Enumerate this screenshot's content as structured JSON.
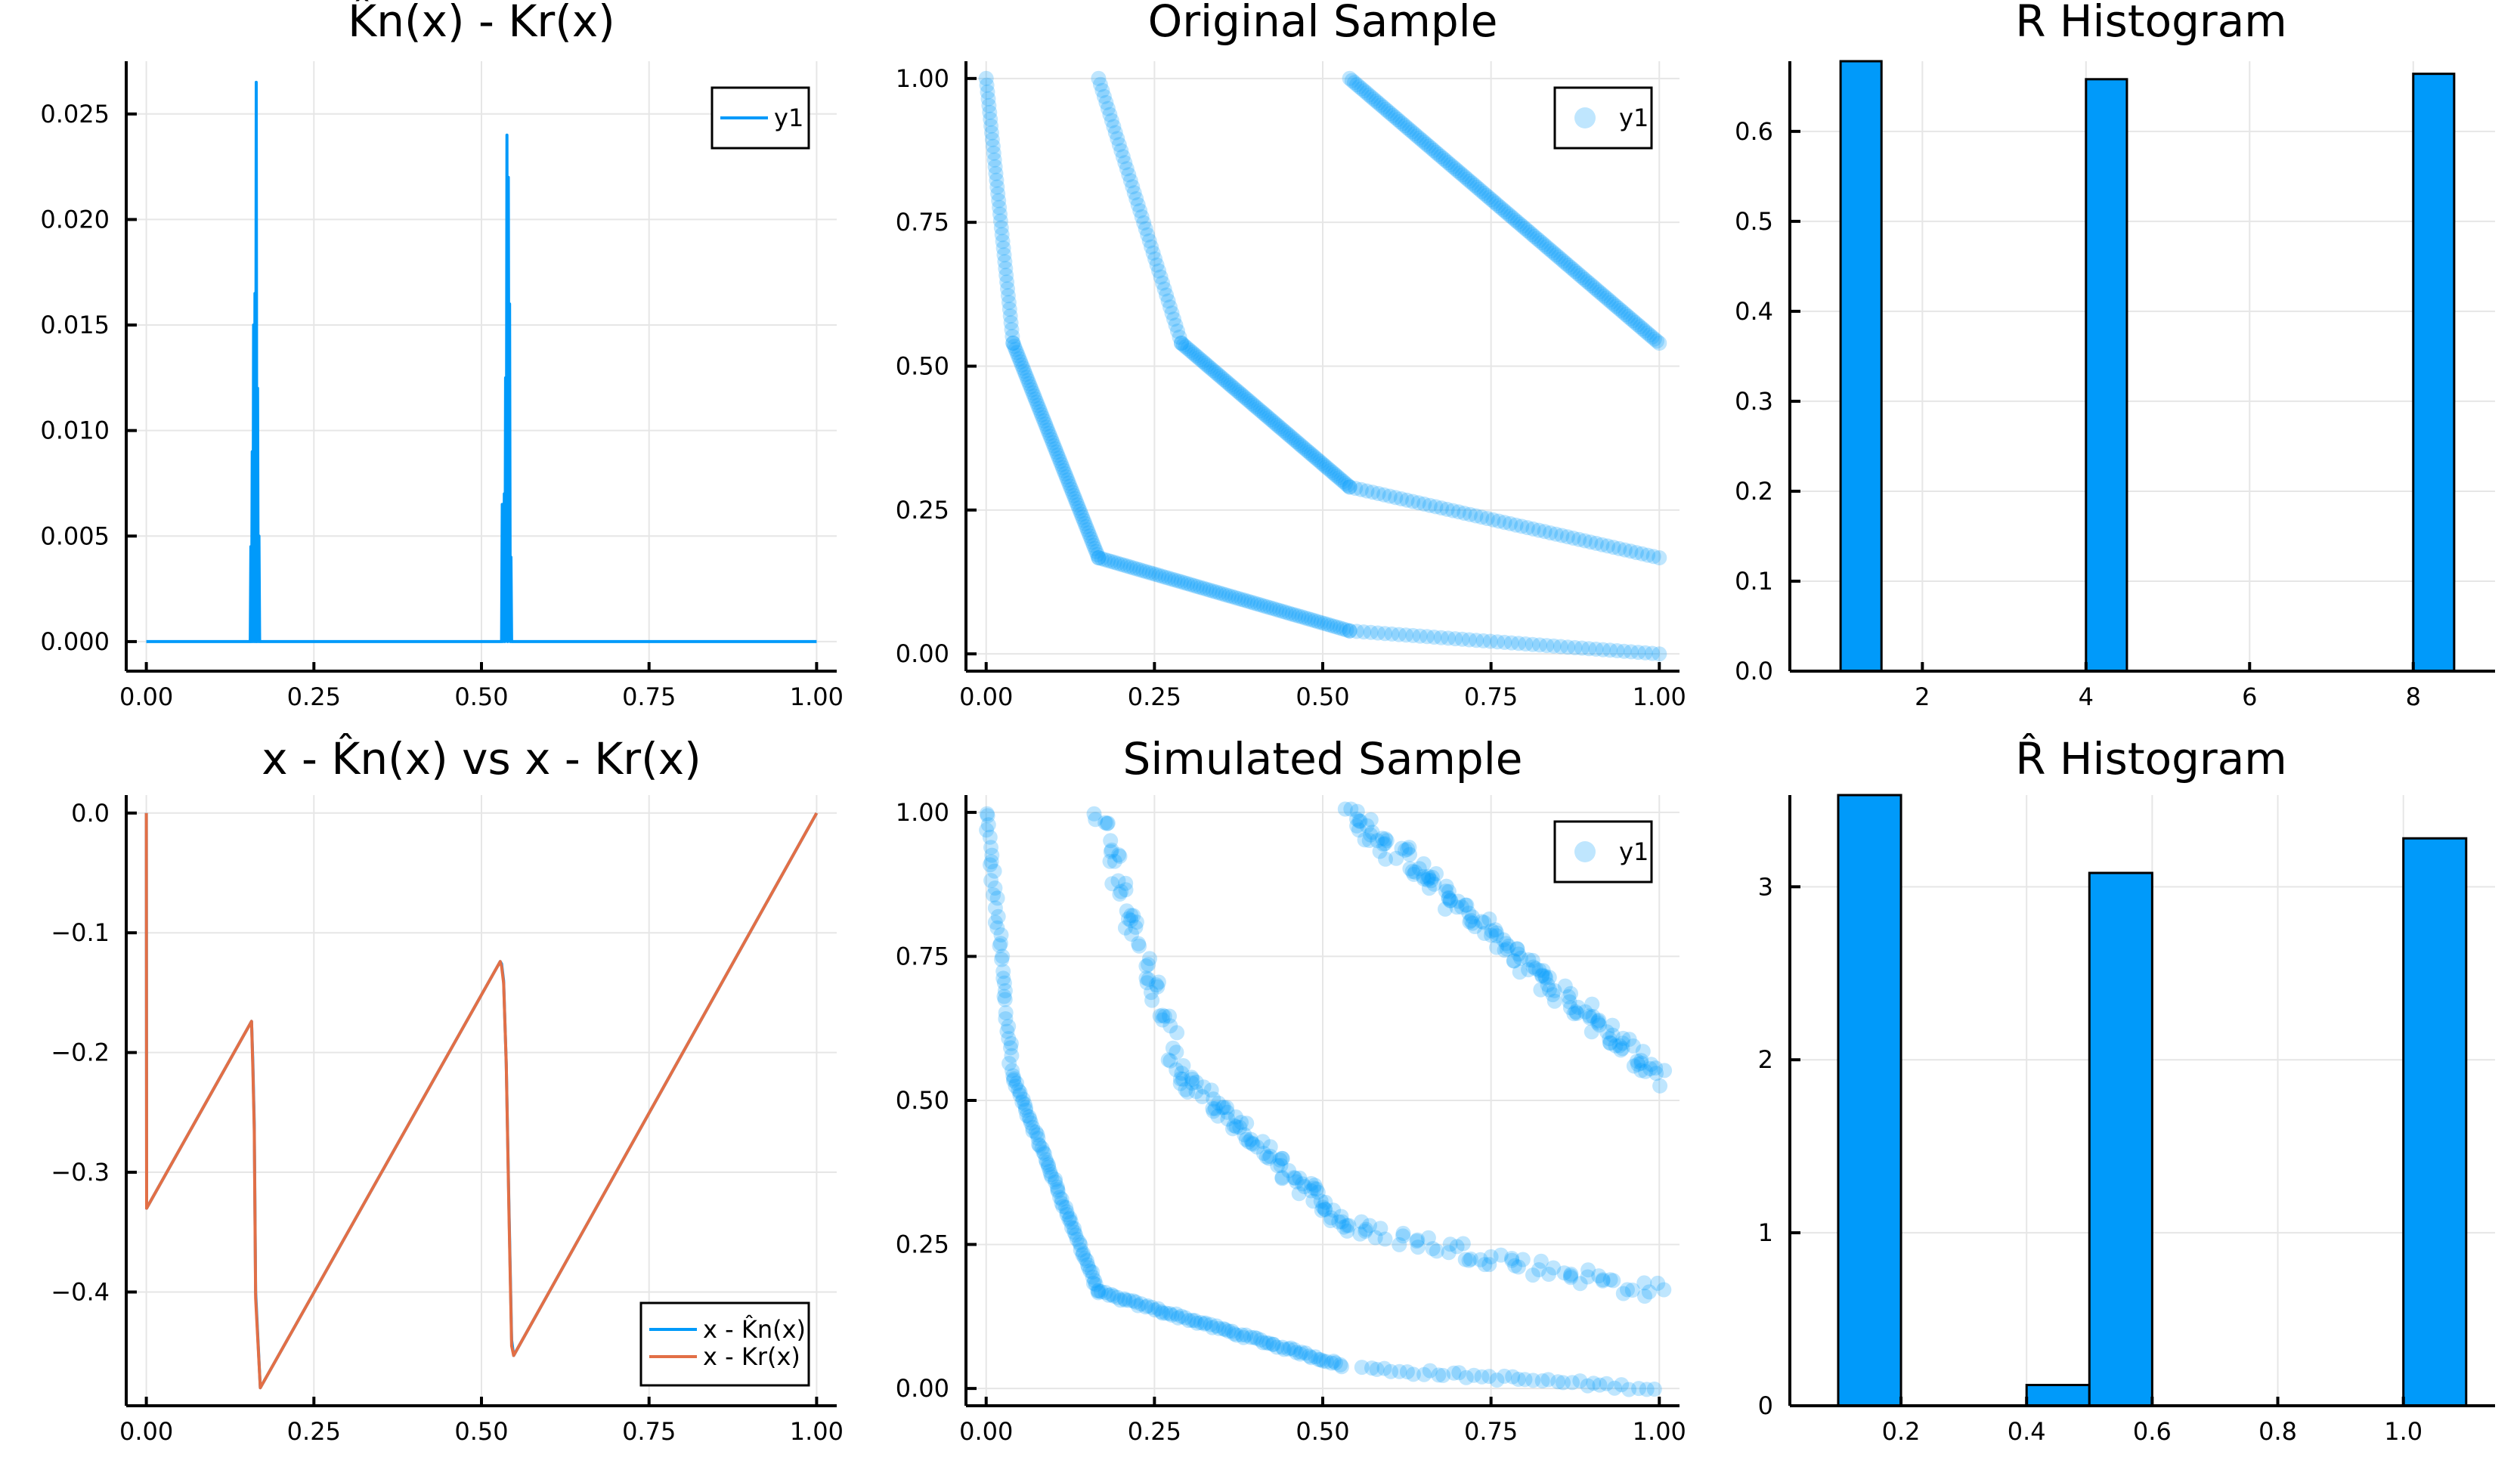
{
  "figure": {
    "colors": {
      "series1": "#009AFA",
      "series2": "#E26F46",
      "bar_edge": "#000000",
      "grid": "#E6E6E6"
    }
  },
  "chart_data": [
    {
      "id": "diff",
      "type": "line",
      "title": "K̂ₙ(x) - Kᵣ(x)",
      "title_display": "K̂n(x) - Kr(x)",
      "xlabel": "",
      "ylabel": "",
      "xlim": [
        -0.03,
        1.03
      ],
      "ylim": [
        -0.0014,
        0.0275
      ],
      "xticks": [
        0.0,
        0.25,
        0.5,
        0.75,
        1.0
      ],
      "xtick_labels": [
        "0.00",
        "0.25",
        "0.50",
        "0.75",
        "1.00"
      ],
      "yticks": [
        0.0,
        0.005,
        0.01,
        0.015,
        0.02,
        0.025
      ],
      "ytick_labels": [
        "0.000",
        "0.005",
        "0.010",
        "0.015",
        "0.020",
        "0.025"
      ],
      "grid": true,
      "legend": {
        "position": "top-right",
        "entries": [
          "y1"
        ]
      },
      "series": [
        {
          "name": "y1",
          "x": [
            0.0,
            0.155,
            0.156,
            0.157,
            0.158,
            0.159,
            0.16,
            0.161,
            0.162,
            0.163,
            0.164,
            0.165,
            0.166,
            0.167,
            0.168,
            0.169,
            0.17,
            0.171,
            0.53,
            0.531,
            0.532,
            0.533,
            0.534,
            0.535,
            0.536,
            0.537,
            0.538,
            0.539,
            0.54,
            0.541,
            0.542,
            0.543,
            0.544,
            0.545,
            0.546,
            0.547,
            1.0
          ],
          "y": [
            0.0,
            0.0,
            0.0045,
            0.0,
            0.009,
            0.0,
            0.015,
            0.0,
            0.0165,
            0.0,
            0.0265,
            0.0,
            0.012,
            0.0,
            0.005,
            0.0,
            0.0,
            0.0,
            0.0,
            0.0065,
            0.0,
            0.0005,
            0.007,
            0.0,
            0.0125,
            0.0025,
            0.024,
            0.0,
            0.022,
            0.007,
            0.016,
            0.0,
            0.004,
            0.0,
            0.0,
            0.0,
            0.0
          ]
        }
      ]
    },
    {
      "id": "original",
      "type": "scatter",
      "title": "Original Sample",
      "xlabel": "",
      "ylabel": "",
      "xlim": [
        -0.03,
        1.03
      ],
      "ylim": [
        -0.03,
        1.03
      ],
      "xticks": [
        0.0,
        0.25,
        0.5,
        0.75,
        1.0
      ],
      "xtick_labels": [
        "0.00",
        "0.25",
        "0.50",
        "0.75",
        "1.00"
      ],
      "yticks": [
        0.0,
        0.25,
        0.5,
        0.75,
        1.0
      ],
      "ytick_labels": [
        "0.00",
        "0.25",
        "0.50",
        "0.75",
        "1.00"
      ],
      "grid": true,
      "marker_alpha": 0.25,
      "legend": {
        "position": "top-right",
        "entries": [
          "y1"
        ]
      },
      "series": [
        {
          "name": "y1",
          "segments": [
            {
              "from": [
                0.0,
                1.0
              ],
              "to": [
                0.04,
                0.54
              ],
              "n": 40,
              "jitter": 0.0
            },
            {
              "from": [
                0.04,
                0.54
              ],
              "to": [
                0.167,
                0.167
              ],
              "n": 70,
              "jitter": 0.0
            },
            {
              "from": [
                0.167,
                0.167
              ],
              "to": [
                0.54,
                0.04
              ],
              "n": 80,
              "jitter": 0.0
            },
            {
              "from": [
                0.54,
                0.04
              ],
              "to": [
                1.0,
                0.0
              ],
              "n": 45,
              "jitter": 0.0
            },
            {
              "from": [
                0.167,
                1.0
              ],
              "to": [
                0.29,
                0.54
              ],
              "n": 45,
              "jitter": 0.0
            },
            {
              "from": [
                0.29,
                0.54
              ],
              "to": [
                0.54,
                0.29
              ],
              "n": 80,
              "jitter": 0.0
            },
            {
              "from": [
                0.54,
                0.29
              ],
              "to": [
                1.0,
                0.167
              ],
              "n": 55,
              "jitter": 0.0
            },
            {
              "from": [
                0.54,
                1.0
              ],
              "to": [
                1.0,
                0.54
              ],
              "n": 130,
              "jitter": 0.0
            }
          ]
        }
      ]
    },
    {
      "id": "r_hist",
      "type": "bar",
      "title": "R Histogram",
      "xlabel": "",
      "ylabel": "",
      "xlim": [
        0.38,
        9.0
      ],
      "ylim": [
        0.0,
        0.678
      ],
      "xticks": [
        2,
        4,
        6,
        8
      ],
      "xtick_labels": [
        "2",
        "4",
        "6",
        "8"
      ],
      "yticks": [
        0.0,
        0.1,
        0.2,
        0.3,
        0.4,
        0.5,
        0.6
      ],
      "ytick_labels": [
        "0.0",
        "0.1",
        "0.2",
        "0.3",
        "0.4",
        "0.5",
        "0.6"
      ],
      "grid": true,
      "bins": [
        {
          "left": 1.0,
          "right": 1.5,
          "value": 0.678
        },
        {
          "left": 4.0,
          "right": 4.5,
          "value": 0.658
        },
        {
          "left": 8.0,
          "right": 8.5,
          "value": 0.664
        }
      ]
    },
    {
      "id": "residuals",
      "type": "line",
      "title": "x - K̂ₙ(x) vs x - Kᵣ(x)",
      "title_display": "x - K̂n(x) vs x - Kr(x)",
      "xlabel": "",
      "ylabel": "",
      "xlim": [
        -0.03,
        1.03
      ],
      "ylim": [
        -0.495,
        0.015
      ],
      "xticks": [
        0.0,
        0.25,
        0.5,
        0.75,
        1.0
      ],
      "xtick_labels": [
        "0.00",
        "0.25",
        "0.50",
        "0.75",
        "1.00"
      ],
      "yticks": [
        0.0,
        -0.1,
        -0.2,
        -0.3,
        -0.4
      ],
      "ytick_labels": [
        "0.0",
        "−0.1",
        "−0.2",
        "−0.3",
        "−0.4"
      ],
      "grid": true,
      "legend": {
        "position": "bottom-right",
        "entries": [
          "x - K̂n(x)",
          "x - Kr(x)"
        ]
      },
      "series": [
        {
          "name": "x - K̂n(x)",
          "x": [
            0.0,
            0.0005,
            0.157,
            0.159,
            0.161,
            0.163,
            0.17,
            0.528,
            0.53,
            0.533,
            0.537,
            0.541,
            0.545,
            0.548,
            1.0
          ],
          "y": [
            0.0,
            -0.33,
            -0.174,
            -0.21,
            -0.26,
            -0.4,
            -0.48,
            -0.124,
            -0.126,
            -0.14,
            -0.21,
            -0.33,
            -0.44,
            -0.453,
            0.0
          ]
        },
        {
          "name": "x - Kr(x)",
          "x": [
            0.0,
            0.0005,
            0.157,
            0.159,
            0.161,
            0.163,
            0.17,
            0.528,
            0.53,
            0.533,
            0.537,
            0.541,
            0.545,
            0.548,
            1.0
          ],
          "y": [
            0.0,
            -0.33,
            -0.174,
            -0.215,
            -0.265,
            -0.405,
            -0.48,
            -0.124,
            -0.128,
            -0.142,
            -0.21,
            -0.335,
            -0.445,
            -0.453,
            0.0
          ]
        }
      ]
    },
    {
      "id": "simulated",
      "type": "scatter",
      "title": "Simulated Sample",
      "xlabel": "",
      "ylabel": "",
      "xlim": [
        -0.03,
        1.03
      ],
      "ylim": [
        -0.03,
        1.03
      ],
      "xticks": [
        0.0,
        0.25,
        0.5,
        0.75,
        1.0
      ],
      "xtick_labels": [
        "0.00",
        "0.25",
        "0.50",
        "0.75",
        "1.00"
      ],
      "yticks": [
        0.0,
        0.25,
        0.5,
        0.75,
        1.0
      ],
      "ytick_labels": [
        "0.00",
        "0.25",
        "0.50",
        "0.75",
        "1.00"
      ],
      "grid": true,
      "marker_alpha": 0.25,
      "legend": {
        "position": "top-right",
        "entries": [
          "y1"
        ]
      },
      "series": [
        {
          "name": "y1",
          "segments": [
            {
              "from": [
                0.0,
                1.0
              ],
              "to": [
                0.04,
                0.54
              ],
              "n": 40,
              "jitter": 0.004
            },
            {
              "from": [
                0.04,
                0.54
              ],
              "to": [
                0.167,
                0.167
              ],
              "n": 70,
              "jitter": 0.002
            },
            {
              "from": [
                0.167,
                0.167
              ],
              "to": [
                0.53,
                0.04
              ],
              "n": 80,
              "jitter": 0.002
            },
            {
              "from": [
                0.56,
                0.035
              ],
              "to": [
                0.99,
                0.0
              ],
              "n": 40,
              "jitter": 0.003
            },
            {
              "from": [
                0.167,
                1.0
              ],
              "to": [
                0.29,
                0.54
              ],
              "n": 55,
              "jitter": 0.012
            },
            {
              "from": [
                0.29,
                0.54
              ],
              "to": [
                0.54,
                0.28
              ],
              "n": 80,
              "jitter": 0.01
            },
            {
              "from": [
                0.54,
                0.28
              ],
              "to": [
                1.0,
                0.167
              ],
              "n": 60,
              "jitter": 0.01
            },
            {
              "from": [
                0.54,
                1.0
              ],
              "to": [
                1.0,
                0.54
              ],
              "n": 150,
              "jitter": 0.012
            }
          ]
        }
      ]
    },
    {
      "id": "rhat_hist",
      "type": "bar",
      "title": "R̂ Histogram",
      "xlabel": "",
      "ylabel": "",
      "xlim": [
        0.023,
        1.146
      ],
      "ylim": [
        0.0,
        3.53
      ],
      "xticks": [
        0.2,
        0.4,
        0.6,
        0.8,
        1.0
      ],
      "xtick_labels": [
        "0.2",
        "0.4",
        "0.6",
        "0.8",
        "1.0"
      ],
      "yticks": [
        0,
        1,
        2,
        3
      ],
      "ytick_labels": [
        "0",
        "1",
        "2",
        "3"
      ],
      "grid": true,
      "bins": [
        {
          "left": 0.1,
          "right": 0.2,
          "value": 3.53
        },
        {
          "left": 0.4,
          "right": 0.5,
          "value": 0.12
        },
        {
          "left": 0.5,
          "right": 0.6,
          "value": 3.08
        },
        {
          "left": 1.0,
          "right": 1.1,
          "value": 3.28
        }
      ]
    }
  ]
}
